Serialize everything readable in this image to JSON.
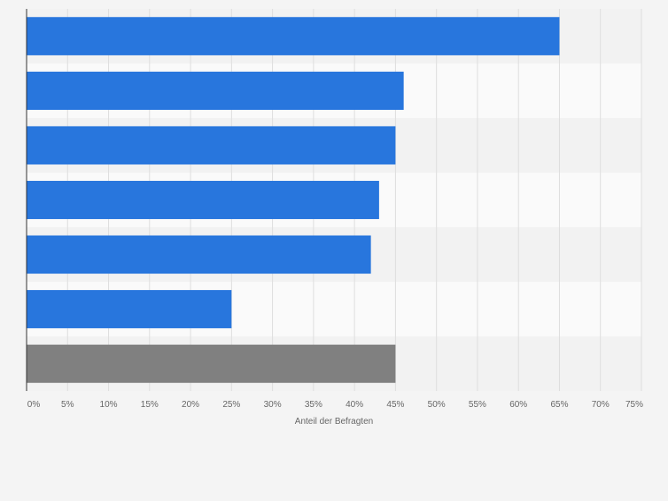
{
  "chart_data": {
    "type": "bar",
    "orientation": "horizontal",
    "categories": [
      "",
      "",
      "",
      "",
      "",
      "",
      ""
    ],
    "values": [
      65,
      46,
      45,
      43,
      42,
      25,
      45
    ],
    "xlabel": "Anteil der Befragten",
    "xlim": [
      0,
      75
    ],
    "xticks": [
      "0%",
      "5%",
      "10%",
      "15%",
      "20%",
      "25%",
      "30%",
      "35%",
      "40%",
      "45%",
      "50%",
      "55%",
      "60%",
      "65%",
      "70%",
      "75%"
    ],
    "grid": true,
    "colors": {
      "bar": "#2876dd",
      "bar_highlight": "#808080",
      "band_light": "#fafafa",
      "band_dark": "#f2f2f2",
      "grid": "#dedede",
      "axis": "#333333",
      "tick_text": "#666666"
    },
    "highlight_index": 6
  }
}
